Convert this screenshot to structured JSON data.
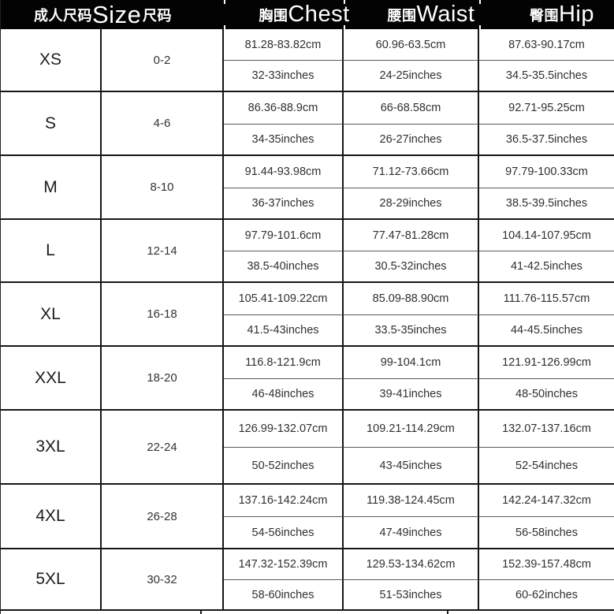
{
  "header": {
    "adult_size_cjk": "成人尺码",
    "adult_size_latin": "Size",
    "size_code": "尺码",
    "chest_cjk": "胸围",
    "chest_latin": "Chest",
    "waist_cjk": "腰围",
    "waist_latin": "Waist",
    "hip_cjk": "臀围",
    "hip_latin": "Hip"
  },
  "colors": {
    "header_bg": "#030303",
    "header_text": "#ffffff",
    "grid_line": "#161616",
    "body_text": "#2e2e2e",
    "background": "#ffffff"
  },
  "table": {
    "rows": [
      {
        "size": "XS",
        "range": "0-2",
        "chest_cm": "81.28-83.82cm",
        "chest_in": "32-33inches",
        "waist_cm": "60.96-63.5cm",
        "waist_in": "24-25inches",
        "hip_cm": "87.63-90.17cm",
        "hip_in": "34.5-35.5inches"
      },
      {
        "size": "S",
        "range": "4-6",
        "chest_cm": "86.36-88.9cm",
        "chest_in": "34-35inches",
        "waist_cm": "66-68.58cm",
        "waist_in": "26-27inches",
        "hip_cm": "92.71-95.25cm",
        "hip_in": "36.5-37.5inches"
      },
      {
        "size": "M",
        "range": "8-10",
        "chest_cm": "91.44-93.98cm",
        "chest_in": "36-37inches",
        "waist_cm": "71.12-73.66cm",
        "waist_in": "28-29inches",
        "hip_cm": "97.79-100.33cm",
        "hip_in": "38.5-39.5inches"
      },
      {
        "size": "L",
        "range": "12-14",
        "chest_cm": "97.79-101.6cm",
        "chest_in": "38.5-40inches",
        "waist_cm": "77.47-81.28cm",
        "waist_in": "30.5-32inches",
        "hip_cm": "104.14-107.95cm",
        "hip_in": "41-42.5inches"
      },
      {
        "size": "XL",
        "range": "16-18",
        "chest_cm": "105.41-109.22cm",
        "chest_in": "41.5-43inches",
        "waist_cm": "85.09-88.90cm",
        "waist_in": "33.5-35inches",
        "hip_cm": "111.76-115.57cm",
        "hip_in": "44-45.5inches"
      },
      {
        "size": "XXL",
        "range": "18-20",
        "chest_cm": "116.8-121.9cm",
        "chest_in": "46-48inches",
        "waist_cm": "99-104.1cm",
        "waist_in": "39-41inches",
        "hip_cm": "121.91-126.99cm",
        "hip_in": "48-50inches"
      },
      {
        "size": "3XL",
        "range": "22-24",
        "chest_cm": "126.99-132.07cm",
        "chest_in": "50-52inches",
        "waist_cm": "109.21-114.29cm",
        "waist_in": "43-45inches",
        "hip_cm": "132.07-137.16cm",
        "hip_in": "52-54inches"
      },
      {
        "size": "4XL",
        "range": "26-28",
        "chest_cm": "137.16-142.24cm",
        "chest_in": "54-56inches",
        "waist_cm": "119.38-124.45cm",
        "waist_in": "47-49inches",
        "hip_cm": "142.24-147.32cm",
        "hip_in": "56-58inches"
      },
      {
        "size": "5XL",
        "range": "30-32",
        "chest_cm": "147.32-152.39cm",
        "chest_in": "58-60inches",
        "waist_cm": "129.53-134.62cm",
        "waist_in": "51-53inches",
        "hip_cm": "152.39-157.48cm",
        "hip_in": "60-62inches"
      }
    ]
  }
}
